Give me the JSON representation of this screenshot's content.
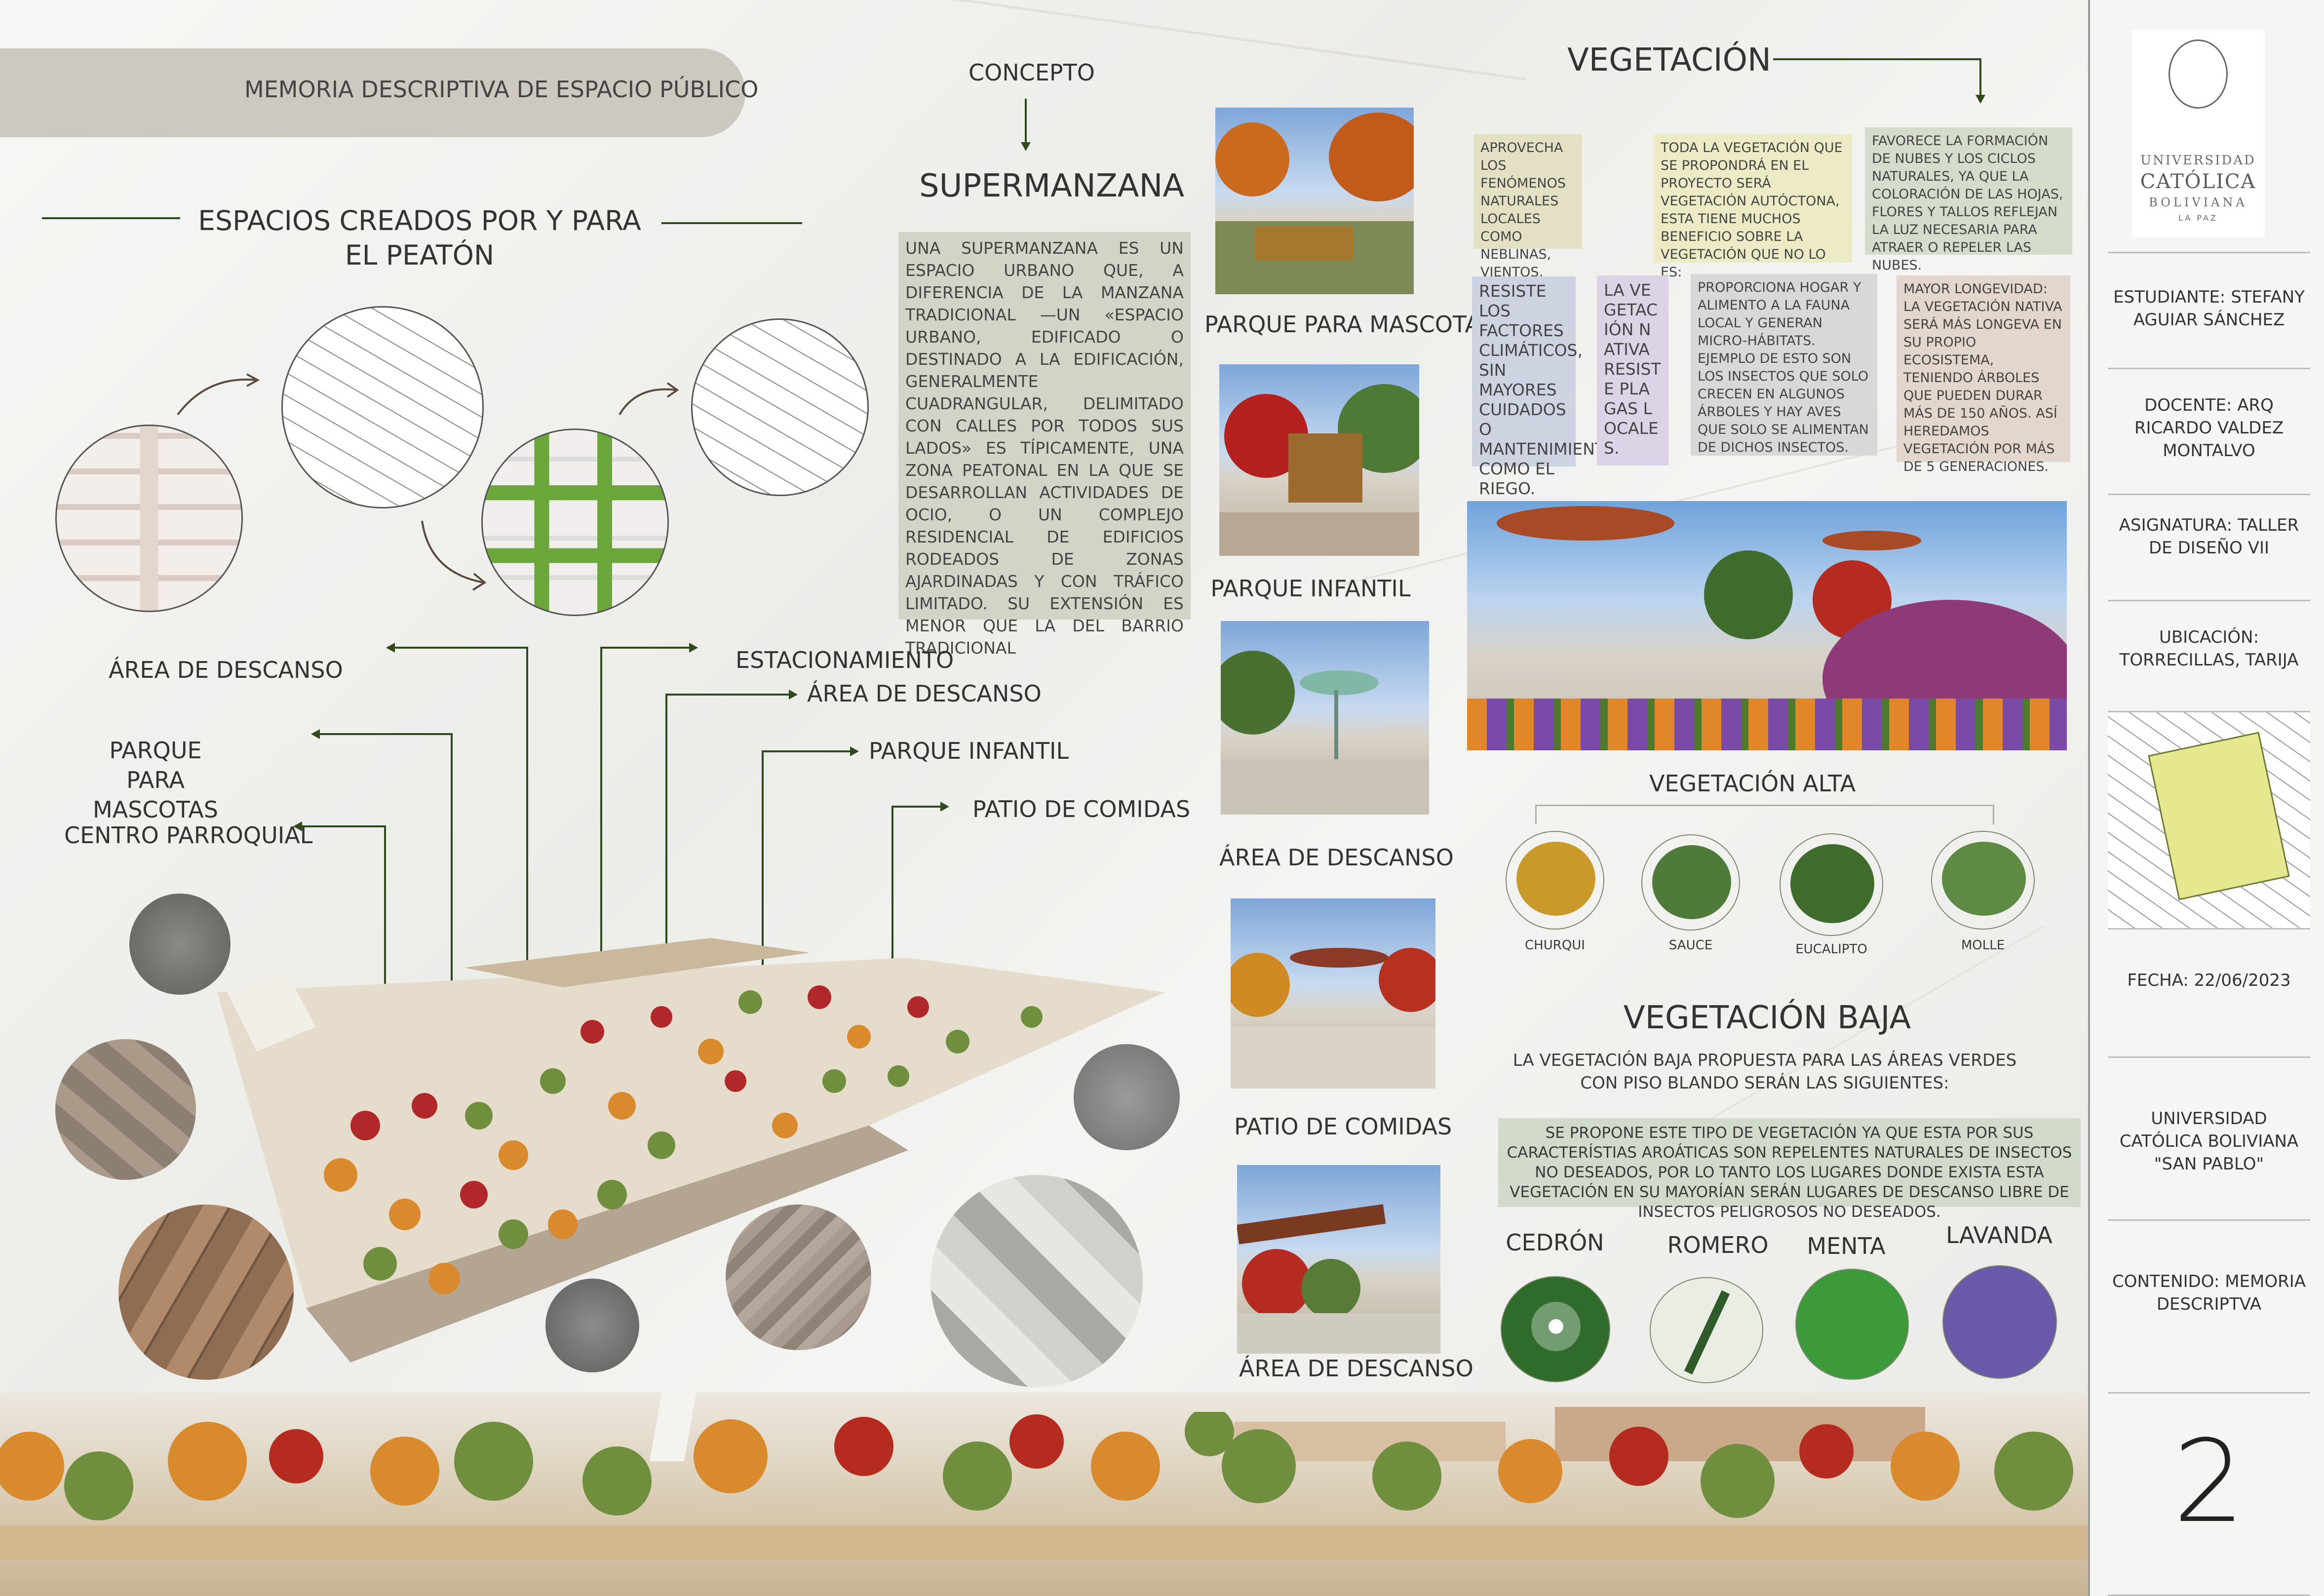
{
  "header": {
    "banner_title": "MEMORIA DESCRIPTIVA DE ESPACIO PÚBLICO",
    "spaces_title": "ESPACIOS CREADOS POR Y PARA EL PEATÓN"
  },
  "concept": {
    "label": "CONCEPTO",
    "title": "SUPERMANZANA",
    "description": "UNA SUPERMANZANA ES UN ESPACIO URBANO QUE, A DIFERENCIA DE LA MANZANA TRADICIONAL —UN «ESPACIO URBANO, EDIFICADO O DESTINADO A LA EDIFICACIÓN, GENERALMENTE CUADRANGULAR, DELIMITADO CON CALLES POR TODOS SUS LADOS» ES TÍPICAMENTE, UNA ZONA PEATONAL EN LA QUE SE DESARROLLAN ACTIVIDADES DE OCIO, O UN COMPLEJO RESIDENCIAL DE EDIFICIOS RODEADOS DE ZONAS AJARDINADAS Y CON TRÁFICO LIMITADO. SU EXTENSIÓN ES MENOR QUE LA DEL BARRIO TRADICIONAL"
  },
  "plan_labels": {
    "area_descanso_1": "ÁREA DE DESCANSO",
    "parque_mascotas": "PARQUE PARA MASCOTAS",
    "centro_parroquial": "CENTRO PARROQUIAL",
    "estacionamiento": "ESTACIONAMIENTO",
    "area_descanso_2": "ÁREA DE DESCANSO",
    "parque_infantil": "PARQUE INFANTIL",
    "patio_comidas": "PATIO DE COMIDAS"
  },
  "renders": [
    {
      "caption": "PARQUE PARA MASCOTAS"
    },
    {
      "caption": "PARQUE INFANTIL"
    },
    {
      "caption": "ÁREA DE DESCANSO"
    },
    {
      "caption": "PATIO DE COMIDAS"
    },
    {
      "caption": "ÁREA DE DESCANSO"
    }
  ],
  "vegetation": {
    "title": "VEGETACIÓN",
    "boxes": [
      {
        "text": "APROVECHA LOS FENÓMENOS NATURALES LOCALES COMO NEBLINAS, VIENTOS, SEQUÍAS O INCENDIOS.",
        "color": "#e3e0c3"
      },
      {
        "text": "TODA LA VEGETACIÓN QUE SE PROPONDRÁ EN EL PROYECTO SERÁ VEGETACIÓN AUTÓCTONA, ESTA TIENE MUCHOS BENEFICIO SOBRE LA VEGETACIÓN QUE NO LO ES:",
        "color": "#ecebc6"
      },
      {
        "text": "FAVORECE LA FORMACIÓN DE NUBES Y LOS CICLOS NATURALES, YA QUE LA COLORACIÓN DE LAS HOJAS, FLORES Y TALLOS REFLEJAN LA LUZ NECESARIA PARA ATRAER O REPELER LAS NUBES.",
        "color": "#d6dccb"
      },
      {
        "text": "RESISTE LOS FACTORES CLIMÁTICOS, SIN MAYORES CUIDADOS O MANTENIMIENTO COMO EL RIEGO.",
        "color": "#cdd3e0"
      },
      {
        "text": "LA VEGETACIÓN NATIVA RESISTE PLAGAS LOCALES.",
        "color": "#dcd3e6"
      },
      {
        "text": "PROPORCIONA HOGAR Y ALIMENTO A LA FAUNA LOCAL Y GENERAN MICRO-HÁBITATS. EJEMPLO DE ESTO SON LOS INSECTOS QUE SOLO CRECEN EN ALGUNOS ÁRBOLES Y HAY AVES QUE SOLO SE ALIMENTAN DE DICHOS INSECTOS.",
        "color": "#d8d8d8"
      },
      {
        "text": "MAYOR LONGEVIDAD: LA VEGETACIÓN NATIVA SERÁ MÁS LONGEVA EN SU PROPIO ECOSISTEMA, TENIENDO ÁRBOLES QUE PUEDEN DURAR MÁS DE 150 AÑOS. ASÍ HEREDAMOS VEGETACIÓN POR MÁS DE 5 GENERACIONES.",
        "color": "#e3d6cc"
      }
    ]
  },
  "vegetacion_alta": {
    "title": "VEGETACIÓN ALTA",
    "trees": [
      {
        "name": "CHURQUI",
        "color": "#c99a2a"
      },
      {
        "name": "SAUCE",
        "color": "#4f7a3a"
      },
      {
        "name": "EUCALIPTO",
        "color": "#3f6b2c"
      },
      {
        "name": "MOLLE",
        "color": "#5f8a44"
      }
    ]
  },
  "vegetacion_baja": {
    "title": "VEGETACIÓN BAJA",
    "intro": "LA VEGETACIÓN BAJA PROPUESTA PARA LAS ÁREAS VERDES CON PISO BLANDO SERÁN LAS SIGUIENTES:",
    "note": "SE PROPONE ESTE TIPO DE VEGETACIÓN YA QUE ESTA POR SUS CARACTERÍSTIAS AROÁTICAS SON REPELENTES NATURALES DE INSECTOS NO DESEADOS, POR LO TANTO LOS LUGARES DONDE EXISTA ESTA VEGETACIÓN EN SU MAYORÍAN SERÁN LUGARES DE DESCANSO LIBRE DE INSECTOS PELIGROSOS NO DESEADOS.",
    "plants": [
      {
        "name": "CEDRÓN",
        "color": "#2f6b2a"
      },
      {
        "name": "ROMERO",
        "color": "#e9ede4"
      },
      {
        "name": "MENTA",
        "color": "#3d9a3a"
      },
      {
        "name": "LAVANDA",
        "color": "#6a58a8"
      }
    ]
  },
  "sidebar": {
    "logo_line1": "UNIVERSIDAD",
    "logo_line2": "CATÓLICA",
    "logo_line3": "BOLIVIANA",
    "logo_line4": "LA PAZ",
    "estudiante": "ESTUDIANTE: STEFANY AGUIAR SÁNCHEZ",
    "docente": "DOCENTE: ARQ RICARDO VALDEZ MONTALVO",
    "asignatura": "ASIGNATURA: TALLER DE DISEÑO VII",
    "ubicacion": "UBICACIÓN: TORRECILLAS, TARIJA",
    "fecha": "FECHA: 22/06/2023",
    "universidad": "UNIVERSIDAD CATÓLICA BOLIVIANA \"SAN PABLO\"",
    "contenido": "CONTENIDO: MEMORIA DESCRIPTVA",
    "page_number": "2"
  }
}
